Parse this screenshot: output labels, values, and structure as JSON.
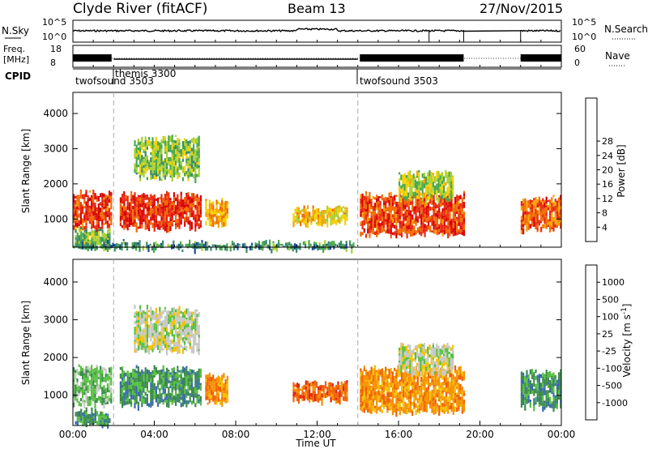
{
  "header": {
    "station": "Clyde River (fitACF)",
    "beam": "Beam 13",
    "date": "27/Nov/2015"
  },
  "noise_panel": {
    "left_label": "N.Sky",
    "right_label": "N.Search",
    "left_ticks": [
      "10^5",
      "10^0"
    ],
    "right_ticks": [
      "10^5",
      "10^0"
    ]
  },
  "freq_panel": {
    "left_label_1": "Freq.",
    "left_label_2": "[MHz]",
    "left_ticks": [
      "18",
      "8"
    ],
    "right_label": "Nave",
    "right_ticks": [
      "60",
      "0"
    ]
  },
  "cpid_panel": {
    "label": "CPID",
    "modes": [
      {
        "name": "twofsound 3503",
        "start_hour": 0.0
      },
      {
        "name": "themis 3300",
        "start_hour": 2.0
      },
      {
        "name": "twofsound 3503",
        "start_hour": 14.0
      }
    ]
  },
  "chart_data": [
    {
      "type": "heatmap",
      "panel": "power",
      "ylabel": "Slant Range [km]",
      "ylim": [
        200,
        4600
      ],
      "yticks": [
        "1000",
        "2000",
        "3000",
        "4000"
      ],
      "xlim_hours": [
        0,
        24
      ],
      "colorbar": {
        "label": "Power [dB]",
        "ticks": [
          "4",
          "8",
          "12",
          "16",
          "20",
          "24",
          "28"
        ],
        "range": [
          0,
          30
        ],
        "colors": [
          "#0000ff",
          "#1a4fa0",
          "#3a8a6a",
          "#49a84a",
          "#a8cf32",
          "#f5d000",
          "#f7a000",
          "#f06a00",
          "#e82a10",
          "#d80000"
        ]
      },
      "data_blocks": [
        {
          "t0": 0.0,
          "t1": 1.9,
          "r0": 800,
          "r1": 1750,
          "level": 26
        },
        {
          "t0": 0.1,
          "t1": 1.8,
          "r0": 250,
          "r1": 700,
          "level": 12
        },
        {
          "t0": 2.3,
          "t1": 6.3,
          "r0": 800,
          "r1": 1700,
          "level": 27
        },
        {
          "t0": 3.0,
          "t1": 6.2,
          "r0": 2200,
          "r1": 3300,
          "level": 12
        },
        {
          "t0": 6.5,
          "t1": 7.6,
          "r0": 850,
          "r1": 1500,
          "level": 20
        },
        {
          "t0": 10.8,
          "t1": 13.5,
          "r0": 900,
          "r1": 1300,
          "level": 18
        },
        {
          "t0": 14.1,
          "t1": 19.2,
          "r0": 600,
          "r1": 1700,
          "level": 26
        },
        {
          "t0": 16.0,
          "t1": 18.7,
          "r0": 1600,
          "r1": 2300,
          "level": 14
        },
        {
          "t0": 22.0,
          "t1": 24.0,
          "r0": 750,
          "r1": 1600,
          "level": 24
        },
        {
          "t0": 0.0,
          "t1": 13.8,
          "r0": 200,
          "r1": 330,
          "level": 8
        }
      ]
    },
    {
      "type": "heatmap",
      "panel": "velocity",
      "ylabel": "Slant Range [km]",
      "ylim": [
        200,
        4600
      ],
      "yticks": [
        "1000",
        "2000",
        "3000",
        "4000"
      ],
      "xlim_hours": [
        0,
        24
      ],
      "xlabel": "Time UT",
      "xticks": [
        "00:00",
        "04:00",
        "08:00",
        "12:00",
        "16:00",
        "20:00",
        "00:00"
      ],
      "colorbar": {
        "label": "Velocity [m s-1]",
        "ticks": [
          "1000",
          "500",
          "100",
          "25",
          "-25",
          "-100",
          "-500",
          "-1000"
        ],
        "colors": [
          "#2040b0",
          "#3a6ab0",
          "#3a8a4a",
          "#55c040",
          "#c8c8c8",
          "#f5c000",
          "#f59000",
          "#f06000",
          "#e02010"
        ]
      },
      "data_blocks": [
        {
          "t0": 0.0,
          "t1": 1.9,
          "r0": 800,
          "r1": 1750,
          "level": 3
        },
        {
          "t0": 0.1,
          "t1": 1.8,
          "r0": 250,
          "r1": 600,
          "level": 2
        },
        {
          "t0": 2.3,
          "t1": 6.3,
          "r0": 800,
          "r1": 1700,
          "level": 2
        },
        {
          "t0": 3.0,
          "t1": 6.2,
          "r0": 2200,
          "r1": 3300,
          "level": 4
        },
        {
          "t0": 6.5,
          "t1": 7.6,
          "r0": 850,
          "r1": 1500,
          "level": 6
        },
        {
          "t0": 10.8,
          "t1": 13.5,
          "r0": 900,
          "r1": 1300,
          "level": 7
        },
        {
          "t0": 14.1,
          "t1": 19.2,
          "r0": 600,
          "r1": 1700,
          "level": 6
        },
        {
          "t0": 16.0,
          "t1": 18.7,
          "r0": 1600,
          "r1": 2300,
          "level": 4
        },
        {
          "t0": 22.0,
          "t1": 24.0,
          "r0": 750,
          "r1": 1600,
          "level": 2
        }
      ]
    }
  ],
  "colors": {
    "axis": "#000000",
    "dashed": "#aaaaaa",
    "trace": "#000000"
  }
}
